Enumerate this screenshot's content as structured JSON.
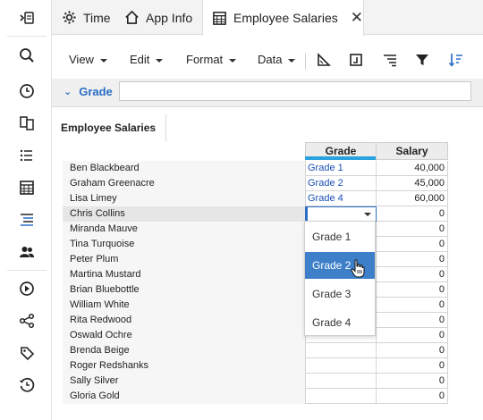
{
  "tabs": [
    {
      "label": "Time",
      "icon": "gear-icon"
    },
    {
      "label": "App Info",
      "icon": "home-icon"
    },
    {
      "label": "Employee Salaries",
      "icon": "table-icon",
      "active": true
    }
  ],
  "toolbar": {
    "menus": [
      "View",
      "Edit",
      "Format",
      "Data"
    ]
  },
  "filter": {
    "label": "Grade",
    "value": ""
  },
  "sheet": {
    "tab_label": "Employee Salaries"
  },
  "grid": {
    "columns": [
      "Grade",
      "Salary"
    ],
    "rows": [
      {
        "name": "Ben Blackbeard",
        "grade": "Grade 1",
        "salary": "40,000"
      },
      {
        "name": "Graham Greenacre",
        "grade": "Grade 2",
        "salary": "45,000"
      },
      {
        "name": "Lisa Limey",
        "grade": "Grade 4",
        "salary": "60,000"
      },
      {
        "name": "Chris Collins",
        "grade": "",
        "salary": "0"
      },
      {
        "name": "Miranda Mauve",
        "grade": "",
        "salary": "0"
      },
      {
        "name": "Tina Turquoise",
        "grade": "",
        "salary": "0"
      },
      {
        "name": "Peter Plum",
        "grade": "",
        "salary": "0"
      },
      {
        "name": "Martina Mustard",
        "grade": "",
        "salary": "0"
      },
      {
        "name": "Brian Bluebottle",
        "grade": "",
        "salary": "0"
      },
      {
        "name": "William White",
        "grade": "",
        "salary": "0"
      },
      {
        "name": "Rita Redwood",
        "grade": "",
        "salary": "0"
      },
      {
        "name": "Oswald Ochre",
        "grade": "",
        "salary": "0"
      },
      {
        "name": "Brenda Beige",
        "grade": "",
        "salary": "0"
      },
      {
        "name": "Roger Redshanks",
        "grade": "",
        "salary": "0"
      },
      {
        "name": "Sally Silver",
        "grade": "",
        "salary": "0"
      },
      {
        "name": "Gloria Gold",
        "grade": "",
        "salary": "0"
      }
    ]
  },
  "dropdown": {
    "options": [
      "Grade 1",
      "Grade 2",
      "Grade 3",
      "Grade 4"
    ],
    "highlighted": "Grade 2"
  },
  "colors": {
    "accent": "#2b6ec4",
    "highlight": "#3d7fc9",
    "header_accent": "#29a3e0",
    "grade_text": "#1a4fb5"
  }
}
